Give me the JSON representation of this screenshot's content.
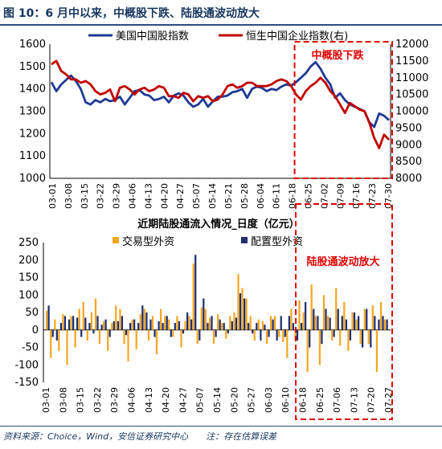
{
  "figure": {
    "title": "图 10：6 月中以来，中概股下跌、陆股通波动放大",
    "source": "资料来源：Choice，Wind，安信证券研究中心　　注：存在估算误差"
  },
  "chart_data": [
    {
      "type": "line",
      "title": "",
      "x_labels": [
        "03-01",
        "03-08",
        "03-15",
        "03-22",
        "03-29",
        "04-06",
        "04-13",
        "04-20",
        "04-27",
        "05-07",
        "05-14",
        "05-21",
        "05-28",
        "06-04",
        "06-11",
        "06-18",
        "06-25",
        "07-02",
        "07-09",
        "07-16",
        "07-23",
        "07-30"
      ],
      "y_left": {
        "min": 1000,
        "max": 1600,
        "ticks": [
          1000,
          1100,
          1200,
          1300,
          1400,
          1500,
          1600
        ]
      },
      "y_right": {
        "min": 8000,
        "max": 12000,
        "ticks": [
          8000,
          8500,
          9000,
          9500,
          10000,
          10500,
          11000,
          11500,
          12000
        ]
      },
      "series": [
        {
          "name": "美国中国股指数",
          "axis": "left",
          "color": "#1f3a93",
          "values": [
            1430,
            1390,
            1420,
            1440,
            1460,
            1435,
            1400,
            1340,
            1330,
            1350,
            1340,
            1355,
            1345,
            1350,
            1365,
            1330,
            1360,
            1390,
            1395,
            1375,
            1370,
            1350,
            1355,
            1365,
            1340,
            1370,
            1380,
            1370,
            1340,
            1320,
            1330,
            1355,
            1320,
            1345,
            1365,
            1365,
            1370,
            1385,
            1390,
            1400,
            1360,
            1400,
            1410,
            1405,
            1390,
            1400,
            1395,
            1410,
            1420,
            1415,
            1430,
            1450,
            1470,
            1500,
            1520,
            1490,
            1450,
            1420,
            1360,
            1380,
            1350,
            1330,
            1320,
            1310,
            1300,
            1250,
            1230,
            1290,
            1280,
            1260
          ]
        },
        {
          "name": "恒生中国企业指数(右)",
          "axis": "right",
          "color": "#c00000",
          "values": [
            11400,
            11500,
            11200,
            11100,
            10950,
            10950,
            10850,
            10900,
            10800,
            10600,
            10500,
            10550,
            10650,
            10300,
            10700,
            10750,
            10650,
            10500,
            10650,
            10700,
            10600,
            10650,
            10750,
            10700,
            10450,
            10450,
            10400,
            10550,
            10500,
            10300,
            10450,
            10400,
            10450,
            10300,
            10350,
            10500,
            10750,
            10800,
            10700,
            10750,
            10850,
            10850,
            10750,
            10750,
            10750,
            10800,
            10900,
            10950,
            10900,
            10750,
            10500,
            10350,
            10600,
            10750,
            10850,
            11000,
            10850,
            10600,
            10450,
            10200,
            9950,
            10250,
            10150,
            10050,
            10000,
            9650,
            9200,
            8900,
            9300,
            9150
          ]
        }
      ],
      "annotation": "中概股下跌",
      "highlight_from": "06-18"
    },
    {
      "type": "bar",
      "title": "近期陆股通流入情况_日度（亿元）",
      "x_labels": [
        "03-01",
        "03-08",
        "03-15",
        "03-22",
        "03-29",
        "04-06",
        "04-13",
        "04-20",
        "04-27",
        "05-07",
        "05-14",
        "05-20",
        "05-27",
        "06-03",
        "06-10",
        "06-18",
        "06-25",
        "07-06",
        "07-13",
        "07-20",
        "07-27"
      ],
      "y": {
        "min": -150,
        "max": 250,
        "ticks": [
          -150,
          -100,
          -50,
          0,
          50,
          100,
          150,
          200,
          250
        ]
      },
      "series": [
        {
          "name": "交易型外资",
          "color": "#f5a623",
          "values": [
            55,
            -80,
            30,
            -60,
            45,
            -100,
            40,
            -50,
            60,
            80,
            -30,
            50,
            90,
            -40,
            25,
            -60,
            20,
            70,
            60,
            -40,
            -90,
            30,
            -55,
            45,
            60,
            -30,
            40,
            -70,
            60,
            40,
            30,
            -20,
            40,
            -50,
            25,
            40,
            190,
            -40,
            65,
            60,
            35,
            -40,
            45,
            20,
            -25,
            40,
            50,
            160,
            120,
            90,
            40,
            -30,
            30,
            25,
            -40,
            40,
            40,
            -20,
            -35,
            -80,
            60,
            -30,
            85,
            50,
            -120,
            130,
            40,
            -100,
            100,
            40,
            -30,
            120,
            -45,
            80,
            -60,
            50,
            30,
            -40,
            60,
            -40,
            70,
            -120,
            80,
            30
          ]
        },
        {
          "name": "配置型外资",
          "color": "#1f3070",
          "values": [
            70,
            -20,
            -30,
            20,
            40,
            30,
            40,
            35,
            -20,
            35,
            20,
            -10,
            40,
            15,
            30,
            -20,
            25,
            25,
            40,
            -15,
            20,
            30,
            20,
            70,
            50,
            30,
            -20,
            25,
            20,
            40,
            -20,
            20,
            25,
            -10,
            50,
            30,
            215,
            -30,
            90,
            20,
            40,
            -20,
            30,
            20,
            -10,
            25,
            35,
            105,
            90,
            20,
            -10,
            20,
            -30,
            15,
            -20,
            30,
            -30,
            40,
            -20,
            40,
            20,
            -30,
            20,
            80,
            -50,
            60,
            40,
            -40,
            60,
            35,
            -20,
            60,
            40,
            30,
            -30,
            50,
            40,
            -50,
            60,
            -50,
            40,
            30,
            40,
            30
          ]
        }
      ],
      "annotation": "陆股通波动放大",
      "highlight_from": "06-18"
    }
  ]
}
